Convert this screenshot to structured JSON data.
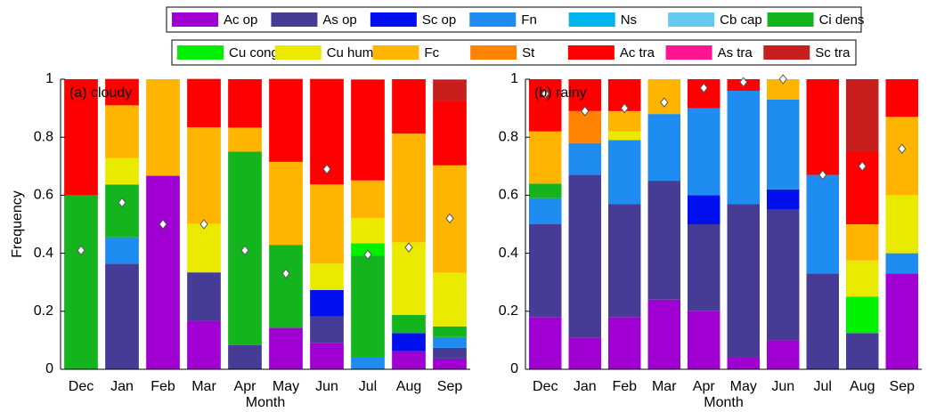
{
  "chart_data": [
    {
      "type": "bar",
      "stacked": true,
      "title": "(a) cloudy",
      "xlabel": "Month",
      "ylabel": "Frequency",
      "categories": [
        "Dec",
        "Jan",
        "Feb",
        "Mar",
        "Apr",
        "May",
        "Jun",
        "Jul",
        "Aug",
        "Sep"
      ],
      "ylim": [
        0,
        1
      ],
      "yticks": [
        0,
        0.2,
        0.4,
        0.6,
        0.8,
        1
      ],
      "series": [
        {
          "name": "Ac op",
          "color": "#a000d2",
          "values": [
            0,
            0,
            0.667,
            0.167,
            0,
            0.143,
            0.091,
            0,
            0.0625,
            0.037
          ]
        },
        {
          "name": "As op",
          "color": "#463c96",
          "values": [
            0,
            0.364,
            0,
            0.167,
            0.083,
            0,
            0.091,
            0,
            0,
            0.037
          ]
        },
        {
          "name": "Sc op",
          "color": "#0010ee",
          "values": [
            0,
            0,
            0,
            0,
            0,
            0,
            0.091,
            0,
            0.0625,
            0
          ]
        },
        {
          "name": "Fn",
          "color": "#1e8cf0",
          "values": [
            0,
            0.091,
            0,
            0,
            0,
            0,
            0,
            0.043,
            0,
            0.037
          ]
        },
        {
          "name": "Ns",
          "color": "#00b4f0",
          "values": [
            0,
            0,
            0,
            0,
            0,
            0,
            0,
            0,
            0,
            0
          ]
        },
        {
          "name": "Cb cap",
          "color": "#64c8f0",
          "values": [
            0,
            0,
            0,
            0,
            0,
            0,
            0,
            0,
            0,
            0
          ]
        },
        {
          "name": "Ci dens",
          "color": "#14b41e",
          "values": [
            0.6,
            0.182,
            0,
            0,
            0.667,
            0.286,
            0,
            0.348,
            0.0625,
            0.037
          ]
        },
        {
          "name": "Cu cong",
          "color": "#00f000",
          "values": [
            0,
            0,
            0,
            0,
            0,
            0,
            0,
            0.043,
            0,
            0
          ]
        },
        {
          "name": "Cu hum",
          "color": "#eaea00",
          "values": [
            0,
            0.091,
            0,
            0.167,
            0,
            0,
            0.091,
            0.087,
            0.25,
            0.185
          ]
        },
        {
          "name": "Fc",
          "color": "#ffb400",
          "values": [
            0,
            0.182,
            0.333,
            0.333,
            0.083,
            0.286,
            0.273,
            0.13,
            0.375,
            0.37
          ]
        },
        {
          "name": "St",
          "color": "#ff8200",
          "values": [
            0,
            0,
            0,
            0,
            0,
            0,
            0,
            0,
            0,
            0
          ]
        },
        {
          "name": "Ac tra",
          "color": "#ff0000",
          "values": [
            0.4,
            0.091,
            0,
            0.167,
            0.167,
            0.286,
            0.364,
            0.348,
            0.1875,
            0.222
          ]
        },
        {
          "name": "As tra",
          "color": "#ff1493",
          "values": [
            0,
            0,
            0,
            0,
            0,
            0,
            0,
            0,
            0,
            0
          ]
        },
        {
          "name": "Sc tra",
          "color": "#c81e1e",
          "values": [
            0,
            0,
            0,
            0,
            0,
            0,
            0,
            0,
            0,
            0.074
          ]
        }
      ],
      "marker_values": [
        0.41,
        0.575,
        0.5,
        0.5,
        0.41,
        0.33,
        0.69,
        0.395,
        0.42,
        0.52
      ]
    },
    {
      "type": "bar",
      "stacked": true,
      "title": "(b) rainy",
      "xlabel": "Month",
      "categories": [
        "Dec",
        "Jan",
        "Feb",
        "Mar",
        "Apr",
        "May",
        "Jun",
        "Jul",
        "Aug",
        "Sep"
      ],
      "ylim": [
        0,
        1
      ],
      "yticks": [
        0,
        0.2,
        0.4,
        0.6,
        0.8,
        1
      ],
      "series": [
        {
          "values": [
            0.18,
            0.11,
            0.18,
            0.24,
            0.2,
            0.04,
            0.1,
            0,
            0,
            0.33
          ]
        },
        {
          "values": [
            0.32,
            0.56,
            0.39,
            0.41,
            0.3,
            0.53,
            0.45,
            0.33,
            0.125,
            0
          ]
        },
        {
          "values": [
            0,
            0,
            0,
            0,
            0.1,
            0,
            0.07,
            0,
            0,
            0
          ]
        },
        {
          "values": [
            0.09,
            0.11,
            0.22,
            0.23,
            0.3,
            0.39,
            0.31,
            0.34,
            0,
            0.07
          ]
        },
        {
          "values": [
            0,
            0,
            0,
            0,
            0,
            0,
            0,
            0,
            0,
            0
          ]
        },
        {
          "values": [
            0,
            0,
            0,
            0,
            0,
            0,
            0,
            0,
            0,
            0
          ]
        },
        {
          "values": [
            0.05,
            0,
            0,
            0,
            0,
            0,
            0,
            0,
            0,
            0
          ]
        },
        {
          "values": [
            0,
            0,
            0,
            0,
            0,
            0,
            0,
            0,
            0.125,
            0
          ]
        },
        {
          "values": [
            0,
            0,
            0.03,
            0,
            0,
            0,
            0,
            0,
            0.125,
            0.2
          ]
        },
        {
          "values": [
            0.18,
            0,
            0.07,
            0.12,
            0,
            0,
            0.07,
            0,
            0.125,
            0.27
          ]
        },
        {
          "values": [
            0,
            0.11,
            0,
            0,
            0,
            0,
            0,
            0,
            0,
            0
          ]
        },
        {
          "values": [
            0.18,
            0.11,
            0.11,
            0,
            0.1,
            0.04,
            0,
            0.33,
            0.25,
            0.13
          ]
        },
        {
          "values": [
            0,
            0,
            0,
            0,
            0,
            0,
            0,
            0,
            0,
            0
          ]
        },
        {
          "values": [
            0,
            0,
            0,
            0,
            0,
            0,
            0,
            0,
            0.25,
            0
          ]
        }
      ],
      "marker_values": [
        0.95,
        0.89,
        0.9,
        0.92,
        0.97,
        0.99,
        1,
        0.67,
        0.7,
        0.76
      ]
    }
  ]
}
